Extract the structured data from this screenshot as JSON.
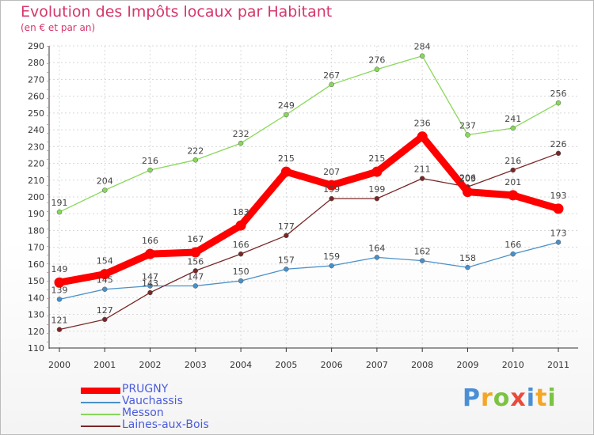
{
  "chart_data": {
    "type": "line",
    "title": "Evolution des Impôts locaux par Habitant",
    "subtitle": "(en € et par an)",
    "categories": [
      "2000",
      "2001",
      "2002",
      "2003",
      "2004",
      "2005",
      "2006",
      "2007",
      "2008",
      "2009",
      "2010",
      "2011"
    ],
    "ylim": [
      110,
      290
    ],
    "ytick_step": 10,
    "grid": true,
    "legend_position": "bottom-left",
    "series": [
      {
        "name": "PRUGNY",
        "color": "#ff0000",
        "values": [
          149,
          154,
          166,
          167,
          183,
          215,
          207,
          215,
          236,
          203,
          201,
          193
        ],
        "emphasis": true
      },
      {
        "name": "Vauchassis",
        "color": "#4a90c8",
        "values": [
          139,
          145,
          147,
          147,
          150,
          157,
          159,
          164,
          162,
          158,
          166,
          173
        ]
      },
      {
        "name": "Messon",
        "color": "#88d85a",
        "values": [
          191,
          204,
          216,
          222,
          232,
          249,
          267,
          276,
          284,
          237,
          241,
          256
        ]
      },
      {
        "name": "Laines-aux-Bois",
        "color": "#7a2626",
        "values": [
          121,
          127,
          143,
          156,
          166,
          177,
          199,
          199,
          211,
          206,
          216,
          226
        ]
      }
    ]
  },
  "logo": {
    "letters": [
      "P",
      "r",
      "o",
      "x",
      "i",
      "t",
      "i"
    ],
    "colors": [
      "#4a8fd6",
      "#f5a623",
      "#7cc342",
      "#e84b3c",
      "#4a8fd6",
      "#f5a623",
      "#7cc342"
    ]
  }
}
